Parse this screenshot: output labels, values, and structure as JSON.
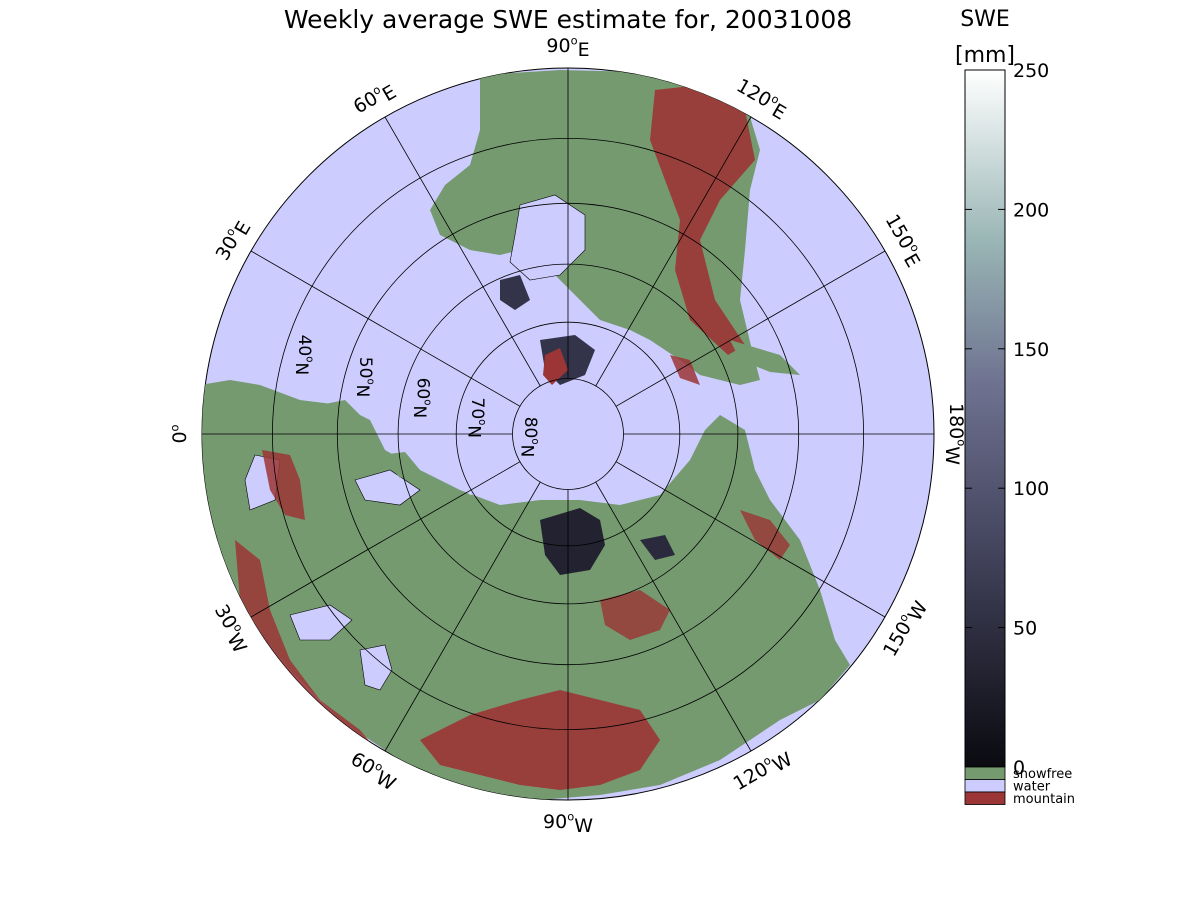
{
  "title": "Weekly average SWE estimate for, 20031008",
  "colorbar": {
    "title_line1": "SWE",
    "title_line2": "[mm]",
    "ticks": [
      "0",
      "50",
      "100",
      "150",
      "200",
      "250"
    ],
    "tick_values": [
      0,
      50,
      100,
      150,
      200,
      250
    ],
    "range": [
      0,
      250
    ],
    "colors": {
      "low": "#0a0a10",
      "mid": "#5a5a78",
      "upper": "#9ab8b8",
      "high": "#ffffff"
    }
  },
  "legend": [
    {
      "label": "snowfree",
      "color": "#759a70"
    },
    {
      "label": "water",
      "color": "#ccccfe"
    },
    {
      "label": "mountain",
      "color": "#9c3535"
    }
  ],
  "map": {
    "projection": "north polar stereographic",
    "ocean_color": "#ccccfe",
    "land_color": "#759a70",
    "mountain_color": "#9c3535",
    "longitude_labels": [
      {
        "base": "90",
        "dir": "W",
        "deg": -90
      },
      {
        "base": "120",
        "dir": "W",
        "deg": -120
      },
      {
        "base": "150",
        "dir": "W",
        "deg": -150
      },
      {
        "base": "180",
        "dir": "W",
        "deg": 180
      },
      {
        "base": "150",
        "dir": "E",
        "deg": 150
      },
      {
        "base": "120",
        "dir": "E",
        "deg": 120
      },
      {
        "base": "90",
        "dir": "E",
        "deg": 90
      },
      {
        "base": "60",
        "dir": "E",
        "deg": 60
      },
      {
        "base": "30",
        "dir": "E",
        "deg": 30
      },
      {
        "base": "0",
        "dir": "",
        "deg": 0
      },
      {
        "base": "30",
        "dir": "W",
        "deg": -30
      },
      {
        "base": "60",
        "dir": "W",
        "deg": -60
      }
    ],
    "latitude_labels": [
      {
        "base": "80",
        "dir": "N",
        "lat": 80
      },
      {
        "base": "70",
        "dir": "N",
        "lat": 70
      },
      {
        "base": "60",
        "dir": "N",
        "lat": 60
      },
      {
        "base": "50",
        "dir": "N",
        "lat": 50
      },
      {
        "base": "40",
        "dir": "N",
        "lat": 40
      }
    ],
    "latitude_circles": [
      80,
      70,
      60,
      50,
      40
    ]
  }
}
